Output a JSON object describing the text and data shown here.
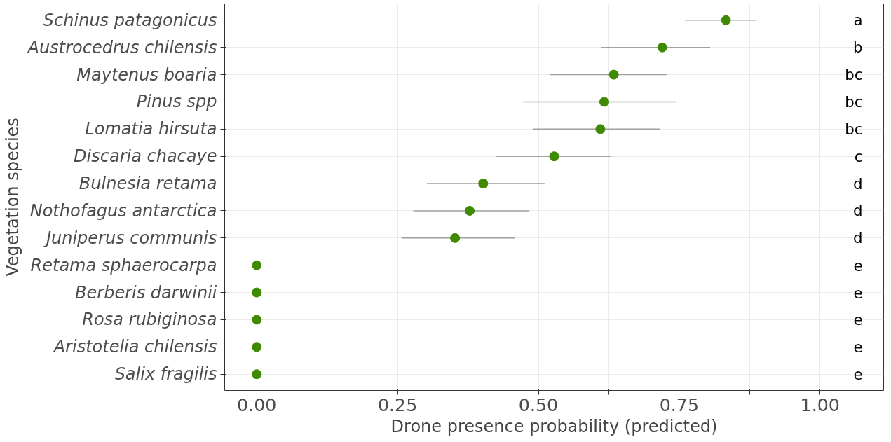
{
  "chart_data": {
    "type": "scatter",
    "orientation": "horizontal",
    "xlabel": "Drone presence probability (predicted)",
    "ylabel": "Vegetation species",
    "categories": [
      "Schinus patagonicus",
      "Austrocedrus chilensis",
      "Maytenus boaria",
      "Pinus spp",
      "Lomatia hirsuta",
      "Discaria chacaye",
      "Bulnesia retama",
      "Nothofagus antarctica",
      "Juniperus communis",
      "Retama sphaerocarpa",
      "Berberis darwinii",
      "Rosa rubiginosa",
      "Aristotelia chilensis",
      "Salix fragilis"
    ],
    "series": [
      {
        "color": "#3f8a00",
        "values": [
          0.833,
          0.72,
          0.634,
          0.617,
          0.61,
          0.528,
          0.402,
          0.378,
          0.352,
          0,
          0,
          0,
          0,
          0
        ],
        "errors": [
          [
            0.76,
            0.887
          ],
          [
            0.612,
            0.805
          ],
          [
            0.52,
            0.729
          ],
          [
            0.473,
            0.745
          ],
          [
            0.491,
            0.716
          ],
          [
            0.425,
            0.629
          ],
          [
            0.302,
            0.511
          ],
          [
            0.278,
            0.484
          ],
          [
            0.257,
            0.458
          ],
          null,
          null,
          null,
          null,
          null
        ]
      }
    ],
    "annotations": [
      "a",
      "b",
      "bc",
      "bc",
      "bc",
      "c",
      "d",
      "d",
      "d",
      "e",
      "e",
      "e",
      "e",
      "e"
    ],
    "xlim": [
      -0.057,
      1.113
    ],
    "xticks": [
      {
        "value": 0,
        "label": "0.00"
      },
      {
        "value": 0.125,
        "label": null
      },
      {
        "value": 0.25,
        "label": "0.25"
      },
      {
        "value": 0.375,
        "label": null
      },
      {
        "value": 0.5,
        "label": "0.50"
      },
      {
        "value": 0.625,
        "label": null
      },
      {
        "value": 0.75,
        "label": "0.75"
      },
      {
        "value": 0.875,
        "label": null
      },
      {
        "value": 1,
        "label": "1.00"
      }
    ],
    "grid": true,
    "marker": "circle"
  }
}
